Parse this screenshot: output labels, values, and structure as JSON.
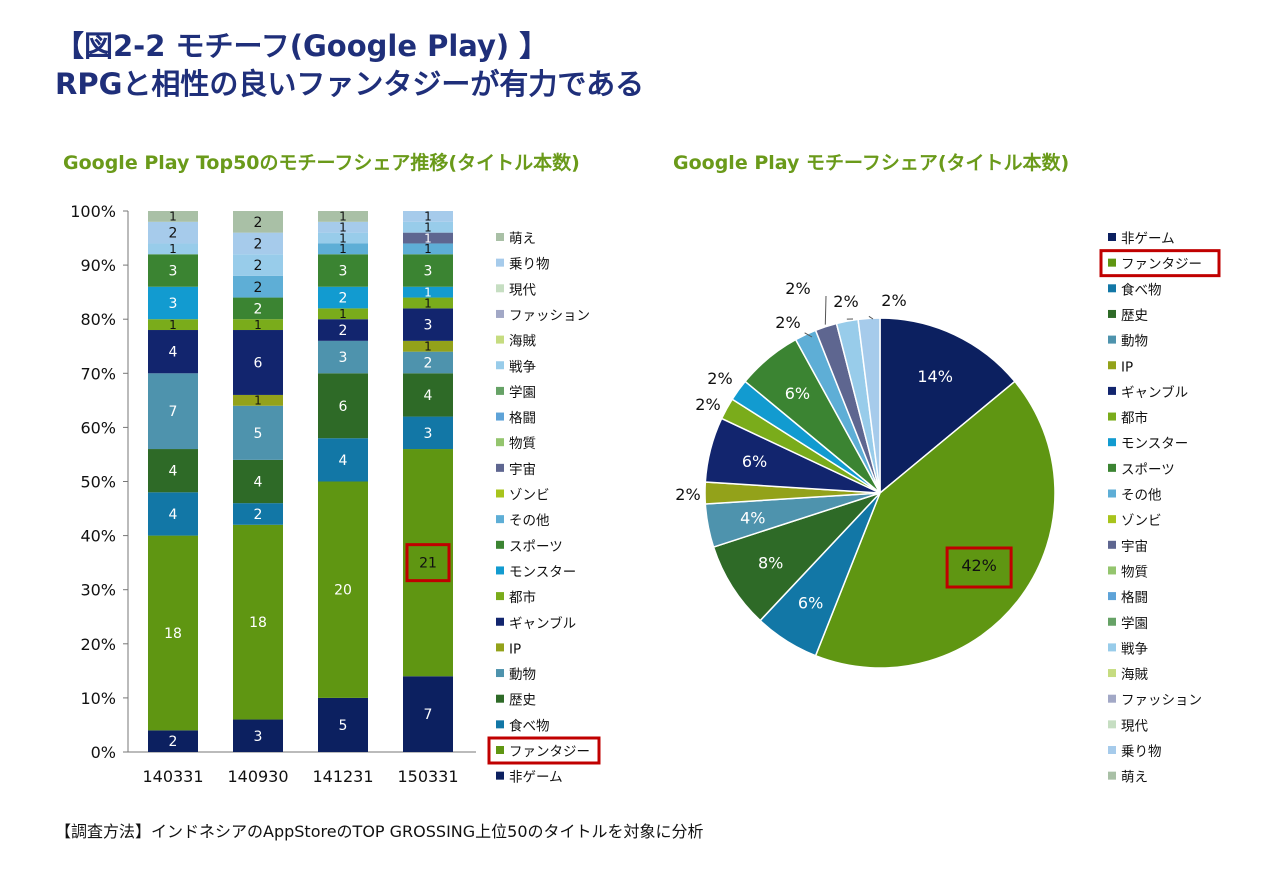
{
  "header": {
    "title_line1": "【図2-2 モチーフ(Google Play) 】",
    "title_line2": "RPGと相性の良いファンタジーが有力である"
  },
  "footnote": "【調査方法】インドネシアのAppStoreのTOP GROSSING上位50のタイトルを対象に分析",
  "colors": {
    "非ゲーム": "#0c2060",
    "ファンタジー": "#5f9612",
    "食べ物": "#1277a6",
    "歴史": "#2e6a27",
    "動物": "#4e93ad",
    "IP": "#93a21a",
    "ギャンブル": "#12256e",
    "都市": "#7aac1b",
    "モンスター": "#129bd0",
    "スポーツ": "#3b8432",
    "その他": "#5eaed6",
    "ゾンビ": "#a8c41c",
    "宇宙": "#5e6690",
    "物質": "#94c56e",
    "格闘": "#5ea3d8",
    "学園": "#66a266",
    "戦争": "#98ccea",
    "海賊": "#c6dc80",
    "ファッション": "#a2a8c6",
    "現代": "#c6dec2",
    "乗り物": "#a6cbeb",
    "萌え": "#a9c0a6",
    "highlight": "#c00000"
  },
  "chart_data": [
    {
      "type": "bar",
      "stacked": true,
      "normalized": true,
      "title": "Google Play Top50のモチーフシェア推移(タイトル本数)",
      "categories": [
        "140331",
        "140930",
        "141231",
        "150331"
      ],
      "yticks": [
        "0%",
        "10%",
        "20%",
        "30%",
        "40%",
        "50%",
        "60%",
        "70%",
        "80%",
        "90%",
        "100%"
      ],
      "ylim": [
        0,
        100
      ],
      "legend_position": "right",
      "legend": [
        "萌え",
        "乗り物",
        "現代",
        "ファッション",
        "海賊",
        "戦争",
        "学園",
        "格闘",
        "物質",
        "宇宙",
        "ゾンビ",
        "その他",
        "スポーツ",
        "モンスター",
        "都市",
        "ギャンブル",
        "IP",
        "動物",
        "歴史",
        "食べ物",
        "ファンタジー",
        "非ゲーム"
      ],
      "highlighted_legend": "ファンタジー",
      "highlighted_value": {
        "series": "ファンタジー",
        "category": "150331"
      },
      "series": [
        {
          "name": "非ゲーム",
          "values": [
            2,
            3,
            5,
            7
          ]
        },
        {
          "name": "ファンタジー",
          "values": [
            18,
            18,
            20,
            21
          ]
        },
        {
          "name": "食べ物",
          "values": [
            4,
            2,
            4,
            3
          ]
        },
        {
          "name": "歴史",
          "values": [
            4,
            4,
            6,
            4
          ]
        },
        {
          "name": "動物",
          "values": [
            7,
            5,
            3,
            2
          ]
        },
        {
          "name": "IP",
          "values": [
            0,
            1,
            0,
            1
          ]
        },
        {
          "name": "ギャンブル",
          "values": [
            4,
            6,
            2,
            3
          ]
        },
        {
          "name": "都市",
          "values": [
            1,
            1,
            1,
            1
          ]
        },
        {
          "name": "モンスター",
          "values": [
            3,
            0,
            2,
            1
          ]
        },
        {
          "name": "スポーツ",
          "values": [
            3,
            2,
            3,
            3
          ]
        },
        {
          "name": "その他",
          "values": [
            0,
            2,
            1,
            1
          ]
        },
        {
          "name": "ゾンビ",
          "values": [
            0,
            0,
            0,
            0
          ]
        },
        {
          "name": "宇宙",
          "values": [
            0,
            0,
            0,
            1
          ]
        },
        {
          "name": "物質",
          "values": [
            0,
            0,
            0,
            0
          ]
        },
        {
          "name": "格闘",
          "values": [
            0,
            0,
            0,
            0
          ]
        },
        {
          "name": "学園",
          "values": [
            0,
            0,
            0,
            0
          ]
        },
        {
          "name": "戦争",
          "values": [
            1,
            2,
            1,
            1
          ]
        },
        {
          "name": "海賊",
          "values": [
            0,
            0,
            0,
            0
          ]
        },
        {
          "name": "ファッション",
          "values": [
            0,
            0,
            0,
            0
          ]
        },
        {
          "name": "現代",
          "values": [
            0,
            0,
            0,
            0
          ]
        },
        {
          "name": "乗り物",
          "values": [
            2,
            2,
            1,
            1
          ]
        },
        {
          "name": "萌え",
          "values": [
            1,
            2,
            1,
            0
          ]
        }
      ]
    },
    {
      "type": "pie",
      "title": "Google Play モチーフシェア(タイトル本数)",
      "legend_position": "right",
      "highlighted_legend": "ファンタジー",
      "highlighted_slice": "ファンタジー",
      "legend": [
        "非ゲーム",
        "ファンタジー",
        "食べ物",
        "歴史",
        "動物",
        "IP",
        "ギャンブル",
        "都市",
        "モンスター",
        "スポーツ",
        "その他",
        "ゾンビ",
        "宇宙",
        "物質",
        "格闘",
        "学園",
        "戦争",
        "海賊",
        "ファッション",
        "現代",
        "乗り物",
        "萌え"
      ],
      "slices": [
        {
          "name": "非ゲーム",
          "value": 14,
          "label": "14%"
        },
        {
          "name": "ファンタジー",
          "value": 42,
          "label": "42%"
        },
        {
          "name": "食べ物",
          "value": 6,
          "label": "6%"
        },
        {
          "name": "歴史",
          "value": 8,
          "label": "8%"
        },
        {
          "name": "動物",
          "value": 4,
          "label": "4%"
        },
        {
          "name": "IP",
          "value": 2,
          "label": "2%"
        },
        {
          "name": "ギャンブル",
          "value": 6,
          "label": "6%"
        },
        {
          "name": "都市",
          "value": 2,
          "label": "2%"
        },
        {
          "name": "モンスター",
          "value": 2,
          "label": "2%"
        },
        {
          "name": "スポーツ",
          "value": 6,
          "label": "6%"
        },
        {
          "name": "その他",
          "value": 2,
          "label": "2%"
        },
        {
          "name": "宇宙",
          "value": 2,
          "label": "2%"
        },
        {
          "name": "戦争",
          "value": 2,
          "label": "2%"
        },
        {
          "name": "乗り物",
          "value": 2,
          "label": "2%"
        }
      ]
    }
  ]
}
